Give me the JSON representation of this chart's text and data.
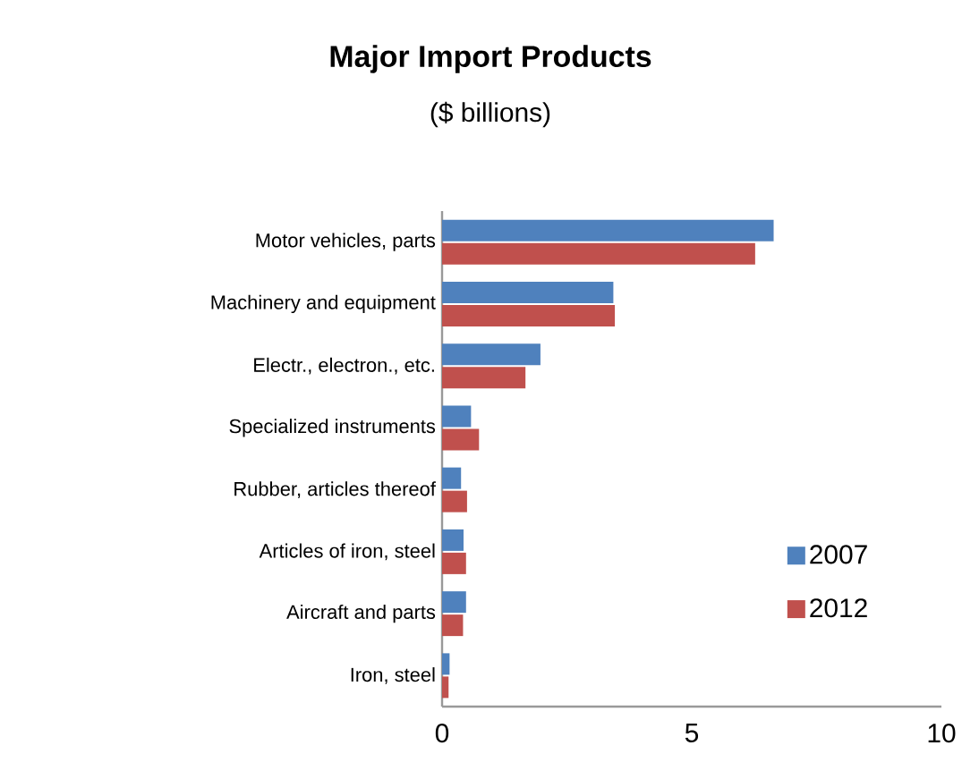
{
  "chart_data": {
    "type": "bar",
    "orientation": "horizontal",
    "title": "Major Import Products",
    "subtitle": "($ billions)",
    "categories": [
      "Motor vehicles, parts",
      "Machinery and equipment",
      "Electr., electron., etc.",
      "Specialized instruments",
      "Rubber, articles thereof",
      "Articles of iron, steel",
      "Aircraft and parts",
      "Iron, steel"
    ],
    "series": [
      {
        "name": "2007",
        "color": "#4f81bd",
        "values": [
          6.64,
          3.43,
          1.97,
          0.58,
          0.38,
          0.43,
          0.48,
          0.15
        ]
      },
      {
        "name": "2012",
        "color": "#c0504d",
        "values": [
          6.27,
          3.46,
          1.67,
          0.74,
          0.5,
          0.48,
          0.42,
          0.13
        ]
      }
    ],
    "xlim": [
      0,
      10
    ],
    "xticks": [
      0,
      5,
      10
    ],
    "grid": false,
    "legend": "right"
  }
}
